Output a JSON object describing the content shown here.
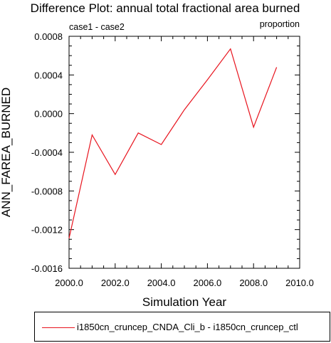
{
  "chart_data": {
    "type": "line",
    "title": "Difference Plot: annual total fractional area burned",
    "subtitle_left": "case1 - case2",
    "subtitle_right": "proportion",
    "xlabel": "Simulation Year",
    "ylabel": "ANN_FAREA_BURNED",
    "xlim": [
      2000,
      2010
    ],
    "ylim": [
      -0.0016,
      0.0008
    ],
    "x_ticks": [
      2000,
      2002,
      2004,
      2006,
      2008,
      2010
    ],
    "x_tick_labels": [
      "2000.0",
      "2002.0",
      "2004.0",
      "2006.0",
      "2008.0",
      "2010.0"
    ],
    "y_ticks": [
      -0.0016,
      -0.0012,
      -0.0008,
      -0.0004,
      0.0,
      0.0004,
      0.0008
    ],
    "y_tick_labels": [
      "-0.0016",
      "-0.0012",
      "-0.0008",
      "-0.0004",
      "0.0000",
      "0.0004",
      "0.0008"
    ],
    "grid": false,
    "legend_position": "bottom",
    "series": [
      {
        "name": "i1850cn_cruncep_CNDA_Cli_b - i1850cn_cruncep_ctl",
        "color": "#e8141e",
        "x": [
          2000,
          2001,
          2002,
          2003,
          2004,
          2005,
          2006,
          2007,
          2008,
          2009
        ],
        "values": [
          -0.00129,
          -0.00022,
          -0.00063,
          -0.0002,
          -0.00032,
          4e-05,
          0.00035,
          0.00067,
          -0.00014,
          0.00048
        ]
      }
    ]
  }
}
